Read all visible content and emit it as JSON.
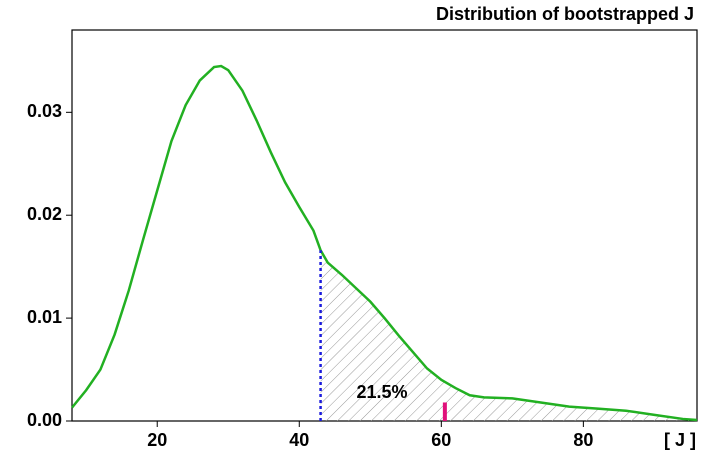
{
  "chart_data": {
    "type": "line",
    "title": "Distribution of bootstrapped J",
    "x_label": "[ J ]",
    "x": [
      8,
      10,
      12,
      14,
      16,
      18,
      20,
      22,
      24,
      26,
      28,
      29,
      30,
      32,
      34,
      36,
      38,
      40,
      42,
      43,
      44,
      46,
      48,
      50,
      52,
      54,
      56,
      58,
      60,
      62,
      64,
      66,
      70,
      74,
      78,
      82,
      86,
      90,
      94,
      96
    ],
    "series": [
      {
        "color": "#22b022",
        "values": [
          0.0013,
          0.003,
          0.005,
          0.0084,
          0.0127,
          0.0176,
          0.0224,
          0.0272,
          0.0307,
          0.0331,
          0.0344,
          0.0345,
          0.0341,
          0.0321,
          0.0292,
          0.0261,
          0.0232,
          0.0208,
          0.0185,
          0.0166,
          0.0154,
          0.0142,
          0.0129,
          0.0116,
          0.01,
          0.0083,
          0.0067,
          0.0051,
          0.004,
          0.0032,
          0.0025,
          0.0023,
          0.0022,
          0.0018,
          0.0014,
          0.0012,
          0.001,
          0.0006,
          0.0002,
          0.0001
        ]
      }
    ],
    "threshold": 43,
    "threshold_color": "#1a1adc",
    "marker": 60.5,
    "marker_height": 0.0018,
    "marker_color": "#e0107a",
    "annotation": "21.5%",
    "xlim": [
      8,
      96
    ],
    "xticks": [
      20,
      40,
      60,
      80
    ],
    "ylim": [
      0,
      0.038
    ],
    "yticks": [
      {
        "value": 0,
        "label": "0.00"
      },
      {
        "value": 0.01,
        "label": "0.01"
      },
      {
        "value": 0.02,
        "label": "0.02"
      },
      {
        "value": 0.03,
        "label": "0.03"
      }
    ]
  }
}
